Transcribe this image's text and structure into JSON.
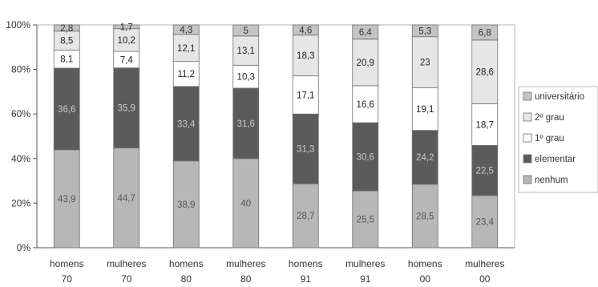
{
  "chart_data": {
    "type": "bar",
    "stacked": true,
    "normalized_percent": true,
    "categories": [
      [
        "homens",
        "70"
      ],
      [
        "mulheres",
        "70"
      ],
      [
        "homens",
        "80"
      ],
      [
        "mulheres",
        "80"
      ],
      [
        "homens",
        "91"
      ],
      [
        "mulheres",
        "91"
      ],
      [
        "homens",
        "00"
      ],
      [
        "mulheres",
        "00"
      ]
    ],
    "series": [
      {
        "name": "nenhum",
        "color": "#b7b7b7",
        "label_color": "#555555",
        "values": [
          43.9,
          44.7,
          38.9,
          40,
          28.7,
          25.5,
          28.5,
          23.4
        ]
      },
      {
        "name": "elementar",
        "color": "#5b5b5b",
        "label_color": "#c8c8c8",
        "values": [
          36.6,
          35.9,
          33.4,
          31.6,
          31.3,
          30.6,
          24.2,
          22.5
        ]
      },
      {
        "name": "1º grau",
        "color": "#ffffff",
        "label_color": "#222222",
        "values": [
          8.1,
          7.4,
          11.2,
          10.3,
          17.1,
          16.6,
          19.1,
          18.7
        ]
      },
      {
        "name": "2º grau",
        "color": "#e6e6e6",
        "label_color": "#222222",
        "values": [
          8.5,
          10.2,
          12.1,
          13.1,
          18.3,
          20.9,
          23,
          28.6
        ]
      },
      {
        "name": "universitário",
        "color": "#c4c4c4",
        "label_color": "#333333",
        "values": [
          2.8,
          1.7,
          4.3,
          5,
          4.6,
          6.4,
          5.3,
          6.8
        ]
      }
    ],
    "y_ticks": [
      "0%",
      "20%",
      "40%",
      "60%",
      "80%",
      "100%"
    ],
    "ylim": [
      0,
      100
    ],
    "grid": false,
    "legend_position": "right",
    "legend_order": [
      "universitário",
      "2º grau",
      "1º grau",
      "elementar",
      "nenhum"
    ]
  }
}
